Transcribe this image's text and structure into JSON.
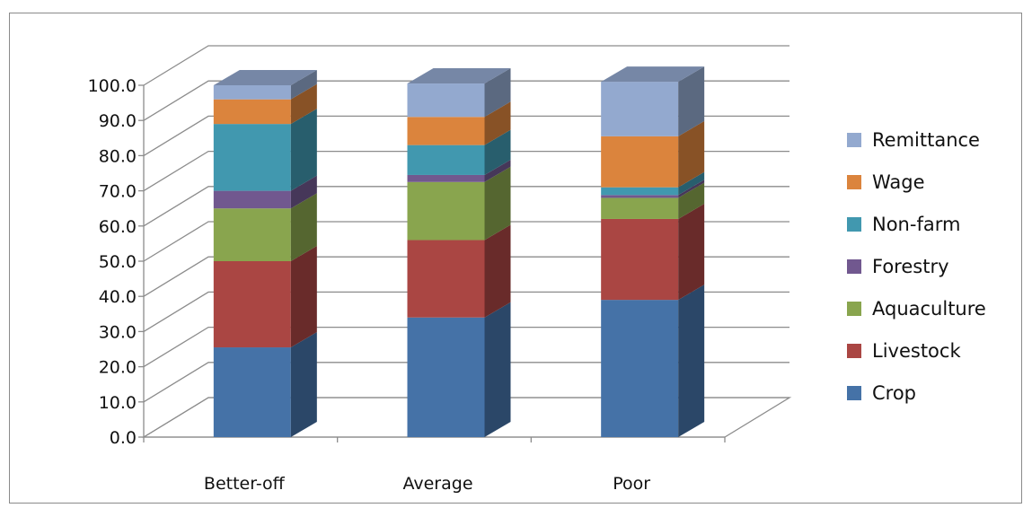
{
  "chart_data": {
    "type": "bar",
    "stacked": true,
    "style": "3d-column",
    "categories": [
      "Better-off",
      "Average",
      "Poor"
    ],
    "series": [
      {
        "name": "Crop",
        "color": "#4572A7",
        "values": [
          25.5,
          34.0,
          39.0
        ]
      },
      {
        "name": "Livestock",
        "color": "#AA4643",
        "values": [
          24.5,
          22.0,
          23.0
        ]
      },
      {
        "name": "Aquaculture",
        "color": "#89A54E",
        "values": [
          15.0,
          16.5,
          6.0
        ]
      },
      {
        "name": "Forestry",
        "color": "#71588F",
        "values": [
          5.0,
          2.0,
          0.8
        ]
      },
      {
        "name": "Non-farm",
        "color": "#4198AF",
        "values": [
          19.0,
          8.5,
          2.2
        ]
      },
      {
        "name": "Wage",
        "color": "#DB843D",
        "values": [
          7.0,
          8.0,
          14.5
        ]
      },
      {
        "name": "Remittance",
        "color": "#93A9CF",
        "values": [
          4.0,
          9.5,
          15.5
        ]
      }
    ],
    "yticks": [
      "0.0",
      "10.0",
      "20.0",
      "30.0",
      "40.0",
      "50.0",
      "60.0",
      "70.0",
      "80.0",
      "90.0",
      "100.0"
    ],
    "ylim": [
      0,
      100
    ],
    "grid": true,
    "legend": "right",
    "title": "",
    "xlabel": "",
    "ylabel": ""
  }
}
